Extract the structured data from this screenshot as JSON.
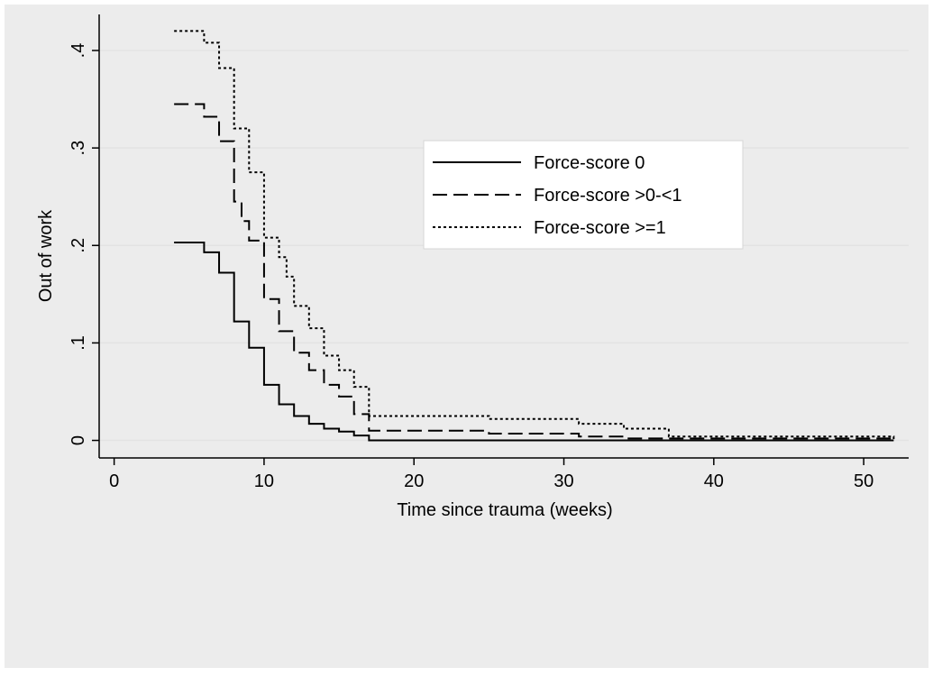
{
  "colors": {
    "frame_border": "#ffffff",
    "background": "#ececec",
    "plot_background": "#ffffff",
    "gridline": "#e3e3e3",
    "axis": "#000000",
    "series": "#000000"
  },
  "chart_data": {
    "type": "line",
    "title": "",
    "xlabel": "Time since trauma (weeks)",
    "ylabel": "Out of work",
    "xlim": [
      -1,
      53
    ],
    "ylim": [
      -0.018,
      0.437
    ],
    "xticks": [
      0,
      10,
      20,
      30,
      40,
      50
    ],
    "xtick_labels": [
      "0",
      "10",
      "20",
      "30",
      "40",
      "50"
    ],
    "yticks": [
      0,
      0.1,
      0.2,
      0.3,
      0.4
    ],
    "ytick_labels": [
      "0",
      ".1",
      ".2",
      ".3",
      ".4"
    ],
    "grid": true,
    "legend_position": "center-right",
    "step": true,
    "series": [
      {
        "name": "Force-score 0",
        "line_style": "solid",
        "x": [
          4,
          6,
          7,
          8,
          9,
          10,
          11,
          12,
          13,
          14,
          15,
          16,
          17,
          52
        ],
        "y": [
          0.203,
          0.193,
          0.172,
          0.122,
          0.095,
          0.057,
          0.037,
          0.025,
          0.017,
          0.012,
          0.009,
          0.005,
          0.0,
          0.0
        ]
      },
      {
        "name": "Force-score >0-<1",
        "line_style": "dashed",
        "x": [
          4,
          5,
          6,
          7,
          8,
          8.5,
          9,
          10,
          11,
          12,
          13,
          14,
          15,
          16,
          17,
          25,
          31,
          34,
          52
        ],
        "y": [
          0.345,
          0.345,
          0.332,
          0.307,
          0.245,
          0.225,
          0.205,
          0.145,
          0.112,
          0.09,
          0.072,
          0.057,
          0.045,
          0.027,
          0.01,
          0.007,
          0.004,
          0.002,
          0.0
        ]
      },
      {
        "name": "Force-score >=1",
        "line_style": "dotted",
        "x": [
          4,
          5,
          6,
          7,
          8,
          9,
          9.5,
          10,
          11,
          11.5,
          12,
          13,
          14,
          15,
          16,
          17,
          25,
          31,
          34,
          37,
          52
        ],
        "y": [
          0.42,
          0.42,
          0.408,
          0.382,
          0.32,
          0.275,
          0.275,
          0.208,
          0.188,
          0.168,
          0.138,
          0.115,
          0.087,
          0.072,
          0.055,
          0.025,
          0.022,
          0.017,
          0.012,
          0.004,
          0.0
        ]
      }
    ]
  }
}
